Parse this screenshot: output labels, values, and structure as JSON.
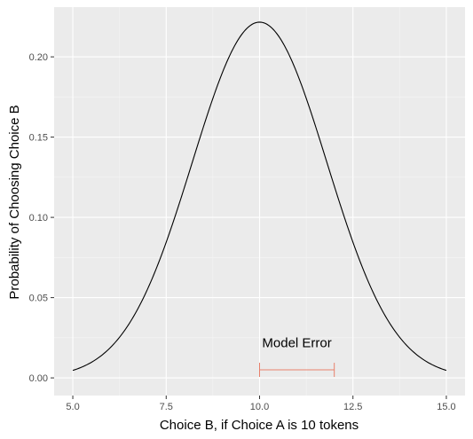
{
  "chart_data": {
    "type": "line",
    "title": "",
    "xlabel": "Choice B, if Choice A is 10 tokens",
    "ylabel": "Probability of Choosing Choice B",
    "xlim": [
      4.5,
      15.5
    ],
    "ylim": [
      -0.011,
      0.231
    ],
    "x_ticks": [
      5,
      7.5,
      10,
      12.5,
      15
    ],
    "x_tick_labels": [
      "5.0",
      "7.5",
      "10.0",
      "12.5",
      "15.0"
    ],
    "y_ticks": [
      0,
      0.05,
      0.1,
      0.15,
      0.2
    ],
    "y_tick_labels": [
      "0.00",
      "0.05",
      "0.10",
      "0.15",
      "0.20"
    ],
    "grid": true,
    "series": [
      {
        "color": "#000000",
        "distribution": "normal",
        "mean": 10,
        "sd": 1.8,
        "x_range": [
          5,
          15
        ]
      }
    ],
    "annotations": [
      {
        "text": "Model Error",
        "x": 11,
        "y": 0.019
      },
      {
        "type": "errorbar",
        "x_start": 10,
        "x_end": 12,
        "y": 0.005,
        "color": "#e8806c"
      }
    ]
  },
  "colors": {
    "panel_background": "#ebebeb",
    "major_grid": "#ffffff",
    "minor_grid": "#f5f5f5",
    "errorbar": "#e8806c",
    "curve": "#000000"
  }
}
